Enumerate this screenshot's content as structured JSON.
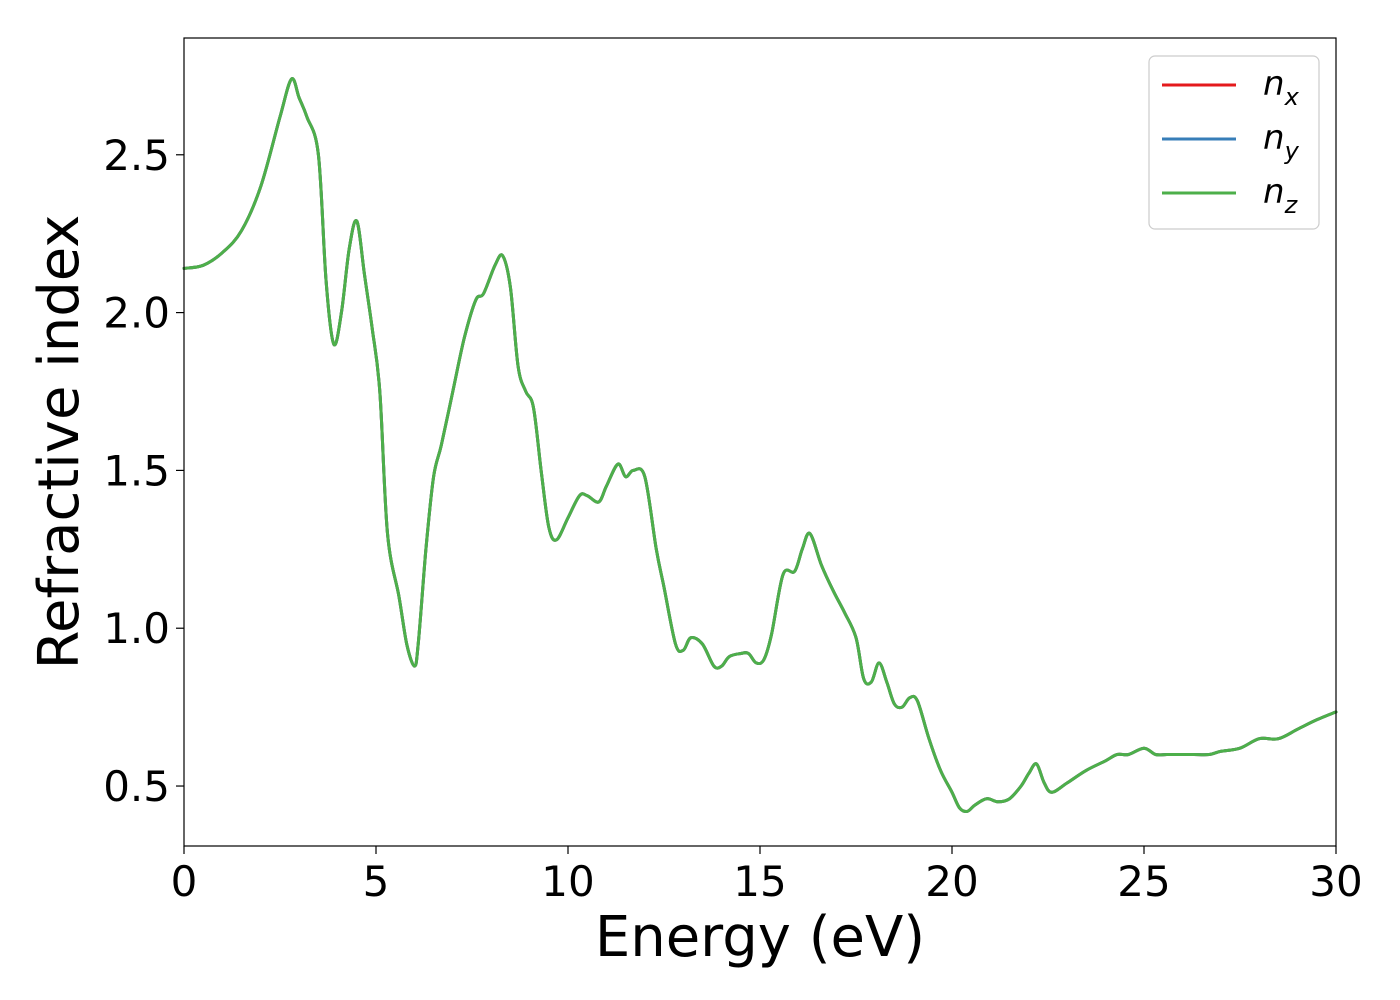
{
  "chart_data": {
    "type": "line",
    "xlabel": "Energy (eV)",
    "ylabel": "Refractive index",
    "xlim": [
      0,
      30
    ],
    "ylim": [
      0.31,
      2.87
    ],
    "xticks": [
      0,
      5,
      10,
      15,
      20,
      25,
      30
    ],
    "xtick_labels": [
      "0",
      "5",
      "10",
      "15",
      "20",
      "25",
      "30"
    ],
    "yticks": [
      0.5,
      1.0,
      1.5,
      2.0,
      2.5
    ],
    "ytick_labels": [
      "0.5",
      "1.0",
      "1.5",
      "2.0",
      "2.5"
    ],
    "grid": false,
    "legend_position": "top-right",
    "series": [
      {
        "name": "n",
        "subscript": "x",
        "color": "#e41a1c"
      },
      {
        "name": "n",
        "subscript": "y",
        "color": "#377eb8"
      },
      {
        "name": "n",
        "subscript": "z",
        "color": "#4daf4a"
      }
    ],
    "x": [
      0,
      0.5,
      1.0,
      1.5,
      2.0,
      2.5,
      2.8,
      3.0,
      3.2,
      3.5,
      3.7,
      3.9,
      4.1,
      4.3,
      4.5,
      4.7,
      4.9,
      5.1,
      5.3,
      5.6,
      5.8,
      6.0,
      6.1,
      6.3,
      6.5,
      6.7,
      7.0,
      7.3,
      7.6,
      7.8,
      8.1,
      8.3,
      8.5,
      8.7,
      8.9,
      9.1,
      9.3,
      9.5,
      9.7,
      10.0,
      10.3,
      10.5,
      10.8,
      11.0,
      11.3,
      11.5,
      11.7,
      12.0,
      12.3,
      12.5,
      12.8,
      13.0,
      13.2,
      13.5,
      13.8,
      14.0,
      14.2,
      14.5,
      14.7,
      14.9,
      15.1,
      15.3,
      15.6,
      15.9,
      16.1,
      16.3,
      16.6,
      16.9,
      17.2,
      17.5,
      17.7,
      17.9,
      18.1,
      18.3,
      18.5,
      18.7,
      18.9,
      19.1,
      19.4,
      19.7,
      20.0,
      20.2,
      20.4,
      20.6,
      20.9,
      21.2,
      21.5,
      21.8,
      22.0,
      22.2,
      22.4,
      22.6,
      23.0,
      23.5,
      24.0,
      24.3,
      24.6,
      25.0,
      25.3,
      25.6,
      26.0,
      26.3,
      26.7,
      27.0,
      27.5,
      28.0,
      28.5,
      29.0,
      29.5,
      30.0
    ],
    "values": [
      2.14,
      2.15,
      2.19,
      2.26,
      2.4,
      2.62,
      2.74,
      2.68,
      2.62,
      2.5,
      2.1,
      1.9,
      2.0,
      2.2,
      2.29,
      2.12,
      1.95,
      1.75,
      1.3,
      1.1,
      0.95,
      0.88,
      0.95,
      1.25,
      1.48,
      1.58,
      1.75,
      1.92,
      2.04,
      2.06,
      2.15,
      2.18,
      2.08,
      1.83,
      1.75,
      1.7,
      1.5,
      1.32,
      1.28,
      1.35,
      1.42,
      1.42,
      1.4,
      1.45,
      1.52,
      1.48,
      1.5,
      1.48,
      1.25,
      1.13,
      0.95,
      0.93,
      0.97,
      0.95,
      0.88,
      0.88,
      0.91,
      0.92,
      0.92,
      0.89,
      0.9,
      0.98,
      1.17,
      1.18,
      1.25,
      1.3,
      1.2,
      1.12,
      1.05,
      0.97,
      0.84,
      0.83,
      0.89,
      0.83,
      0.76,
      0.75,
      0.78,
      0.77,
      0.65,
      0.55,
      0.48,
      0.43,
      0.42,
      0.44,
      0.46,
      0.45,
      0.46,
      0.5,
      0.54,
      0.57,
      0.51,
      0.48,
      0.51,
      0.55,
      0.58,
      0.6,
      0.6,
      0.62,
      0.6,
      0.6,
      0.6,
      0.6,
      0.6,
      0.61,
      0.62,
      0.65,
      0.65,
      0.68,
      0.71,
      0.735
    ]
  }
}
